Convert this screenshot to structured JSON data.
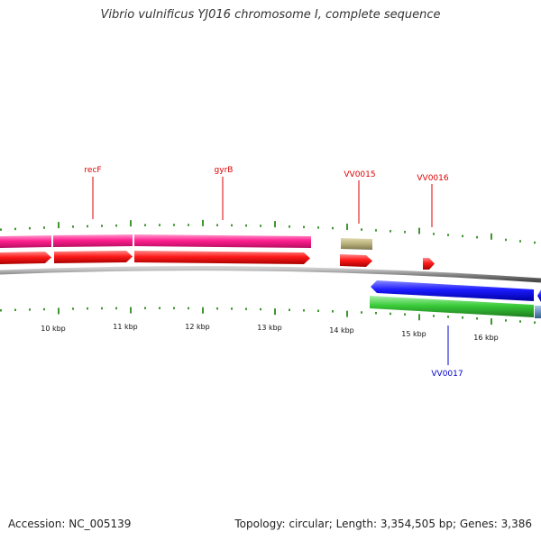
{
  "title": "Vibrio vulnificus YJ016 chromosome I, complete sequence",
  "footer": {
    "accession": "Accession: NC_005139",
    "summary": "Topology: circular; Length: 3,354,505 bp; Genes: 3,386"
  },
  "colors": {
    "ruler_tick": "#2a8a1a",
    "backbone": "#8a8a8a",
    "forward_gene": "#ff1a1a",
    "forward_gene_context": "#ff1f8f",
    "forward_misc": "#b8b07a",
    "reverse_gene": "#1a1aff",
    "reverse_gene_context": "#3acc3a",
    "reverse_other": "#4682b4",
    "forward_label": "#dd0000",
    "reverse_label": "#0000cc"
  },
  "ruler_labels": [
    "10 kbp",
    "11 kbp",
    "12 kbp",
    "13 kbp",
    "14 kbp",
    "15 kbp",
    "16 kbp"
  ],
  "features": {
    "forward": [
      {
        "label": "recF"
      },
      {
        "label": "gyrB"
      },
      {
        "label": "VV0015"
      },
      {
        "label": "VV0016"
      }
    ],
    "reverse": [
      {
        "label": "VV0017"
      }
    ]
  }
}
